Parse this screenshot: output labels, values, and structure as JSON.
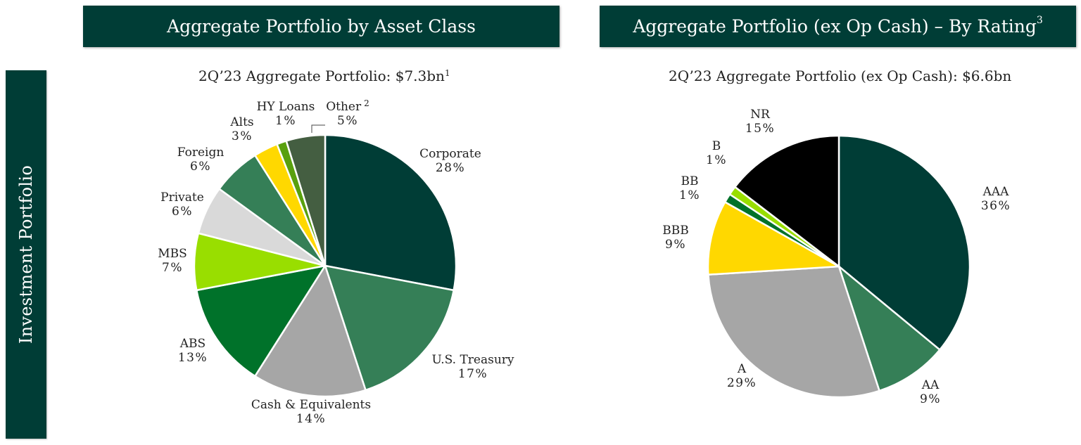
{
  "side_label": "Investment Portfolio",
  "header_left": {
    "text": "Aggregate Portfolio by Asset Class",
    "sup": ""
  },
  "header_right": {
    "text": "Aggregate Portfolio (ex Op Cash) – By Rating",
    "sup": "3"
  },
  "subtitle_left": {
    "text": "2Q’23 Aggregate Portfolio: $7.3bn",
    "sup": "1"
  },
  "subtitle_right": {
    "text": "2Q’23 Aggregate Portfolio (ex Op Cash): $6.6bn"
  },
  "chart_data": [
    {
      "type": "pie",
      "title": "2Q’23 Aggregate Portfolio: $7.3bn",
      "start": "12 o'clock",
      "direction": "clockwise",
      "slices": [
        {
          "label": "Corporate",
          "pct": "28%",
          "value": 28,
          "color": "#003d36"
        },
        {
          "label": "U.S. Treasury",
          "pct": "17%",
          "value": 17,
          "color": "#357f57"
        },
        {
          "label": "Cash & Equivalents",
          "pct": "14%",
          "value": 14,
          "color": "#a6a6a6"
        },
        {
          "label": "ABS",
          "pct": "13%",
          "value": 13,
          "color": "#00722a"
        },
        {
          "label": "MBS",
          "pct": "7%",
          "value": 7,
          "color": "#99de00"
        },
        {
          "label": "Private",
          "pct": "6%",
          "value": 6,
          "color": "#d9d9d9"
        },
        {
          "label": "Foreign",
          "pct": "6%",
          "value": 6,
          "color": "#357f57"
        },
        {
          "label": "Alts",
          "pct": "3%",
          "value": 3,
          "color": "#ffd800"
        },
        {
          "label": "HY Loans",
          "pct": "1%",
          "value": 1.2,
          "color": "#59a00e"
        },
        {
          "label": "Other",
          "label_sup": "2",
          "pct": "5%",
          "value": 4.8,
          "color": "#445e41"
        }
      ]
    },
    {
      "type": "pie",
      "title": "2Q’23 Aggregate Portfolio (ex Op Cash): $6.6bn",
      "start": "12 o'clock",
      "direction": "clockwise",
      "slices": [
        {
          "label": "AAA",
          "pct": "36%",
          "value": 36,
          "color": "#003d36"
        },
        {
          "label": "AA",
          "pct": "9%",
          "value": 9,
          "color": "#357f57"
        },
        {
          "label": "A",
          "pct": "29%",
          "value": 29,
          "color": "#a6a6a6"
        },
        {
          "label": "BBB",
          "pct": "9%",
          "value": 9.2,
          "color": "#ffd800"
        },
        {
          "label": "BB",
          "pct": "1%",
          "value": 1.1,
          "color": "#00722a"
        },
        {
          "label": "B",
          "pct": "1%",
          "value": 1.1,
          "color": "#99de00"
        },
        {
          "label": "NR",
          "pct": "15%",
          "value": 14.6,
          "color": "#000000"
        }
      ]
    }
  ]
}
